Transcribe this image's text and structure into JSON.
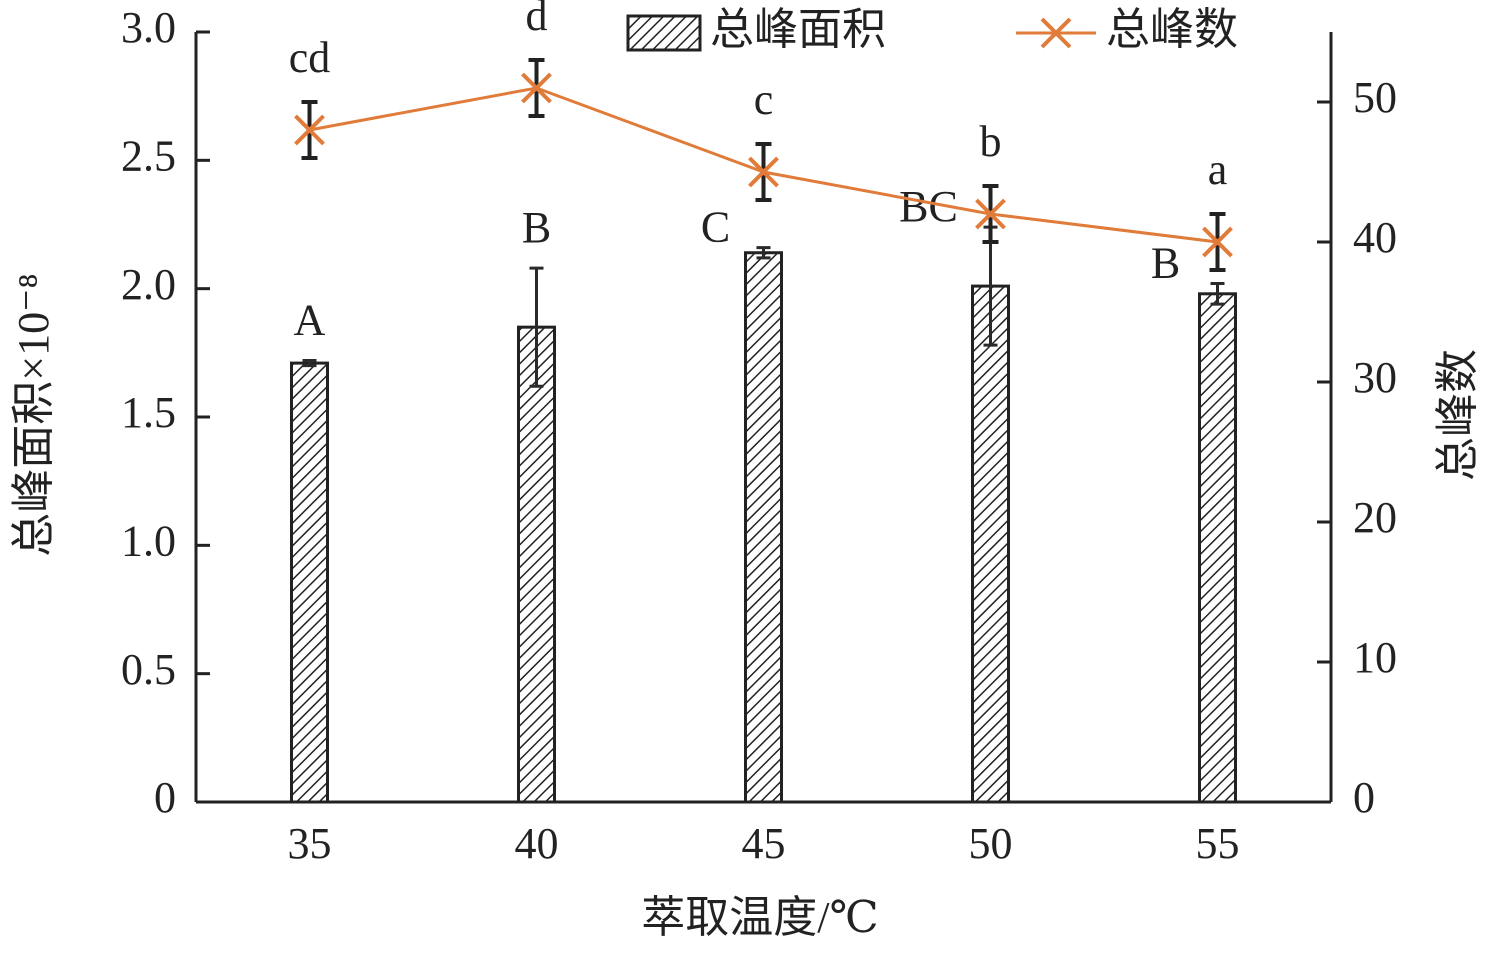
{
  "chart_data": {
    "type": "bar-line",
    "x_label": "萃取温度/℃",
    "y_label": "总峰面积×10⁻⁸",
    "y2_label": "总峰数",
    "categories": [
      "35",
      "40",
      "45",
      "50",
      "55"
    ],
    "ylim": [
      0,
      3
    ],
    "yticks": [
      0,
      0.5,
      {
        "value": 1,
        "label": "1.0"
      },
      1.5,
      {
        "value": 2,
        "label": "2.0"
      },
      2.5,
      {
        "value": 3,
        "label": "3.0"
      }
    ],
    "y2lim": [
      0,
      55
    ],
    "y2ticks": [
      0,
      10,
      20,
      30,
      40,
      50
    ],
    "legend": "top",
    "series": [
      {
        "name": "总峰面积",
        "kind": "bar",
        "color": "#222222",
        "values": [
          1.71,
          1.85,
          2.14,
          2.01,
          1.98
        ],
        "errors": [
          0.01,
          0.23,
          0.02,
          0.23,
          0.04
        ],
        "letters": [
          "A",
          "B",
          "C",
          "BC",
          "B"
        ]
      },
      {
        "name": "总峰数",
        "kind": "line",
        "axis": "y2",
        "color": "#e07b39",
        "values": [
          48,
          51,
          45,
          42,
          40
        ],
        "errors": [
          2,
          2,
          2,
          2,
          2
        ],
        "letters": [
          "cd",
          "d",
          "c",
          "b",
          "a"
        ]
      }
    ]
  }
}
